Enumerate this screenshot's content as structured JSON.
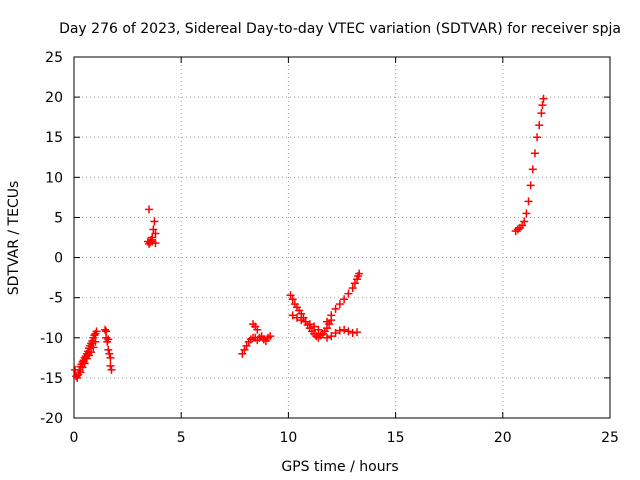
{
  "chart_data": {
    "type": "scatter",
    "title": "Day 276 of 2023, Sidereal Day-to-day VTEC variation (SDTVAR) for receiver spja",
    "xlabel": "GPS time / hours",
    "ylabel": "SDTVAR / TECUs",
    "xlim": [
      0,
      25
    ],
    "ylim": [
      -20,
      25
    ],
    "xticks": [
      0,
      5,
      10,
      15,
      20,
      25
    ],
    "yticks": [
      -20,
      -15,
      -10,
      -5,
      0,
      5,
      10,
      15,
      20,
      25
    ],
    "grid": true,
    "marker": "+",
    "marker_color": "#ff0000",
    "series": [
      {
        "name": "SDTVAR",
        "x": [
          0.05,
          0.1,
          0.15,
          0.2,
          0.25,
          0.3,
          0.35,
          0.4,
          0.45,
          0.5,
          0.55,
          0.6,
          0.65,
          0.7,
          0.75,
          0.8,
          0.85,
          0.9,
          0.95,
          1.0,
          1.05,
          0.3,
          0.4,
          0.5,
          0.6,
          0.7,
          0.8,
          0.9,
          1.0,
          1.45,
          1.5,
          1.55,
          1.6,
          1.65,
          1.7,
          1.5,
          1.6,
          1.7,
          1.75,
          3.45,
          3.5,
          3.55,
          3.6,
          3.65,
          3.7,
          3.75,
          3.8,
          3.5,
          3.65,
          3.8,
          7.85,
          7.95,
          8.05,
          8.15,
          8.25,
          8.35,
          8.45,
          8.55,
          8.65,
          8.75,
          8.85,
          8.95,
          9.05,
          9.15,
          8.35,
          8.45,
          8.55,
          10.1,
          10.2,
          10.3,
          10.4,
          10.5,
          10.6,
          10.7,
          10.8,
          10.9,
          11.0,
          11.1,
          11.2,
          11.3,
          11.4,
          11.5,
          11.6,
          11.7,
          11.8,
          11.9,
          12.0,
          10.2,
          10.4,
          10.6,
          10.8,
          11.0,
          11.2,
          11.4,
          11.6,
          11.8,
          12.0,
          12.2,
          12.4,
          12.6,
          12.8,
          13.0,
          13.2,
          11.8,
          12.0,
          12.2,
          12.4,
          12.6,
          12.8,
          13.0,
          13.1,
          13.2,
          13.25,
          13.3,
          20.6,
          20.7,
          20.8,
          20.9,
          21.0,
          21.1,
          21.2,
          21.3,
          21.4,
          21.5,
          21.6,
          21.7,
          21.8,
          21.85,
          21.9
        ],
        "y": [
          -14.0,
          -14.8,
          -15.0,
          -14.6,
          -14.0,
          -13.6,
          -13.3,
          -13.0,
          -12.8,
          -12.5,
          -12.3,
          -12.0,
          -11.7,
          -11.3,
          -11.0,
          -10.7,
          -10.4,
          -10.0,
          -9.7,
          -9.5,
          -9.2,
          -14.3,
          -13.7,
          -13.2,
          -12.6,
          -12.2,
          -11.8,
          -11.2,
          -10.5,
          -9.0,
          -10.0,
          -10.5,
          -11.5,
          -12.0,
          -13.5,
          -9.2,
          -10.2,
          -12.5,
          -14.0,
          2.0,
          1.7,
          1.9,
          2.2,
          2.0,
          3.5,
          4.5,
          1.8,
          6.0,
          2.5,
          3.0,
          -12.0,
          -11.5,
          -11.0,
          -10.5,
          -10.2,
          -10.0,
          -10.0,
          -10.3,
          -10.0,
          -9.8,
          -10.2,
          -10.4,
          -10.0,
          -9.8,
          -8.3,
          -8.6,
          -9.0,
          -4.7,
          -5.2,
          -5.8,
          -6.2,
          -6.6,
          -7.0,
          -7.5,
          -8.0,
          -8.4,
          -8.8,
          -9.2,
          -9.5,
          -9.8,
          -10.0,
          -9.7,
          -9.5,
          -9.2,
          -8.8,
          -8.3,
          -7.8,
          -7.2,
          -7.5,
          -7.8,
          -8.0,
          -8.3,
          -8.6,
          -9.0,
          -9.5,
          -10.0,
          -9.8,
          -9.4,
          -9.1,
          -9.0,
          -9.2,
          -9.4,
          -9.3,
          -8.0,
          -7.2,
          -6.4,
          -5.8,
          -5.2,
          -4.5,
          -3.8,
          -3.2,
          -2.7,
          -2.3,
          -2.0,
          3.3,
          3.5,
          3.7,
          4.0,
          4.5,
          5.5,
          7.0,
          9.0,
          11.0,
          13.0,
          15.0,
          16.5,
          18.0,
          19.0,
          19.8
        ]
      }
    ]
  }
}
